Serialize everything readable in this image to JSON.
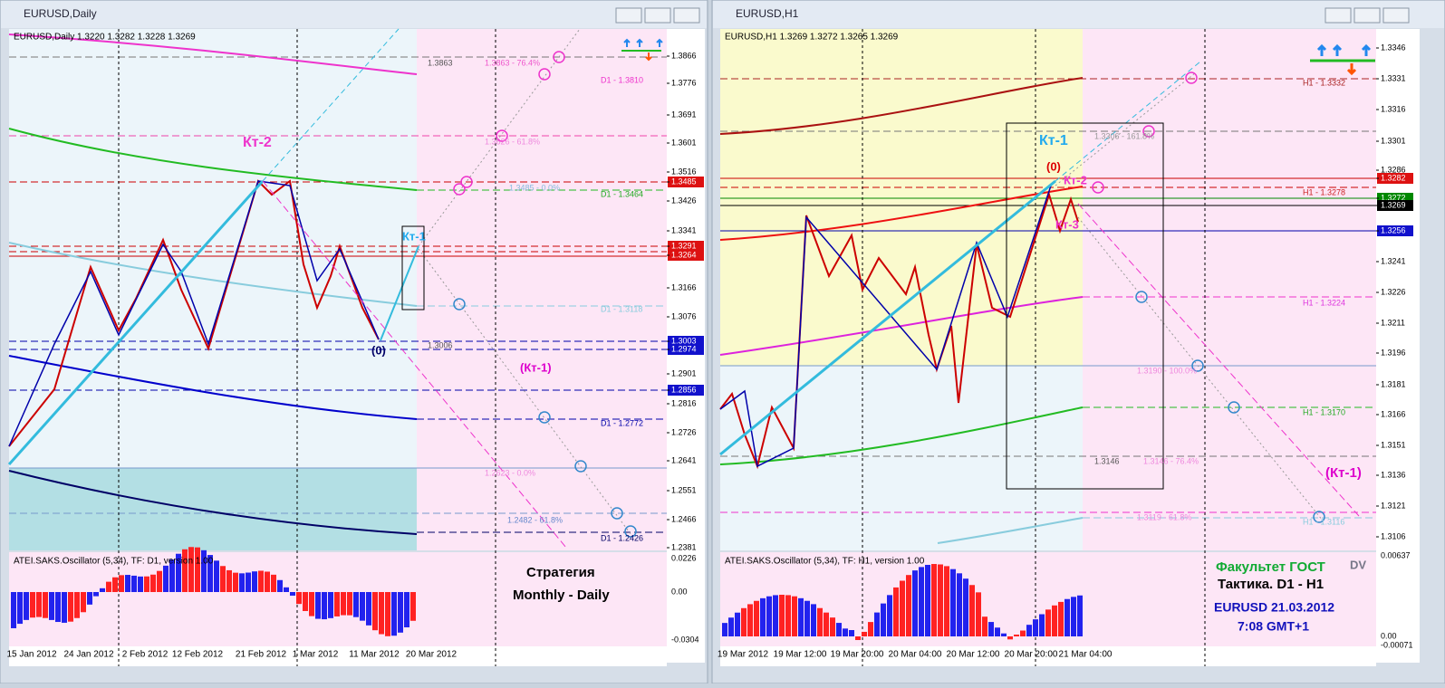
{
  "windows": [
    {
      "title": "EURUSD,Daily",
      "header": "EURUSD,Daily  1.3220 1.3282 1.3228 1.3269",
      "price_labels": [
        "1.3866",
        "1.3776",
        "1.3691",
        "1.3601",
        "1.3516",
        "1.3485",
        "1.3426",
        "1.3341",
        "1.3291",
        "1.3264",
        "1.3166",
        "1.3076",
        "1.3003",
        "1.2974",
        "1.2901",
        "1.2856",
        "1.2816",
        "1.2726",
        "1.2641",
        "1.2551",
        "1.2466",
        "1.2381"
      ],
      "oscillator_header": "ATEI.SAKS.Oscillator (5,34), TF: D1,  version 1.00",
      "oscillator_labels": [
        "0.0226",
        "0.00",
        "-0.0304"
      ],
      "dates": [
        "15 Jan 2012",
        "24 Jan 2012",
        "2 Feb 2012",
        "12 Feb 2012",
        "21 Feb 2012",
        "1 Mar 2012",
        "11 Mar 2012",
        "20 Mar 2012"
      ],
      "level_labels": [
        "1.3863",
        "1.3863 - 76.4%",
        "D1 - 1.3810",
        "1.3626 - 61.8%",
        "1.3485 - 0.0%",
        "D1 - 1.3464",
        "D1 - 1.3118",
        "1.3006",
        "D1 - 1.2772",
        "1.2623 - 0.0%",
        "1.2482 - 61.8%",
        "D1 - 1.2426"
      ],
      "annotations": [
        "Кт-2",
        "Кт-1",
        "(0)",
        "(Кт-1)",
        "Стратегия",
        "Monthly - Daily"
      ]
    },
    {
      "title": "EURUSD,H1",
      "header": "EURUSD,H1  1.3269 1.3272 1.3265 1.3269",
      "price_labels": [
        "1.3346",
        "1.3331",
        "1.3316",
        "1.3301",
        "1.3286",
        "1.3282",
        "1.3272",
        "1.3269",
        "1.3256",
        "1.3241",
        "1.3226",
        "1.3211",
        "1.3196",
        "1.3181",
        "1.3166",
        "1.3151",
        "1.3136",
        "1.3121",
        "1.3106"
      ],
      "oscillator_header": "ATEI.SAKS.Oscillator (5,34), TF: H1,  version 1.00",
      "oscillator_labels": [
        "0.00637",
        "0.00",
        "-0.00071"
      ],
      "dates": [
        "19 Mar 2012",
        "19 Mar 12:00",
        "19 Mar 20:00",
        "20 Mar 04:00",
        "20 Mar 12:00",
        "20 Mar 20:00",
        "21 Mar 04:00"
      ],
      "level_labels": [
        "H1 - 1.3332",
        "1.3306 - 161.8%",
        "H1 - 1.3278",
        "H1 - 1.3224",
        "1.3190 - 100.0%",
        "H1 - 1.3170",
        "1.3146",
        "1.3146 - 76.4%",
        "1.3119 - 61.8%",
        "H1 - 1.3116"
      ],
      "annotations": [
        "Кт-1",
        "(0)",
        "Кт-2",
        "Кт-3",
        "(Кт-1)",
        "Факультет ГОСТ",
        "DV",
        "Тактика. D1 - H1",
        "EURUSD 21.03.2012",
        "7:08 GMT+1"
      ]
    }
  ]
}
